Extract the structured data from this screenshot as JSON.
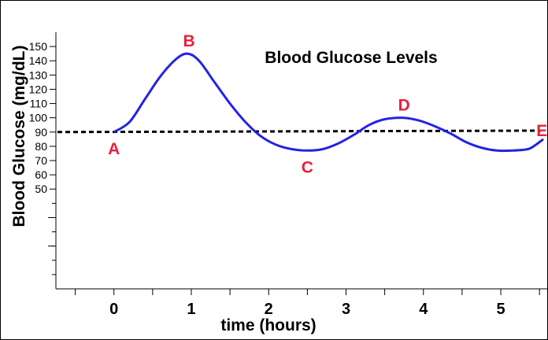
{
  "chart_data": {
    "type": "line",
    "title": "Blood Glucose Levels",
    "xlabel": "time (hours)",
    "ylabel": "Blood Glucose (mg/dL)",
    "x_ticks": [
      "0",
      "1",
      "2",
      "3",
      "4",
      "5"
    ],
    "y_ticks": [
      "50",
      "60",
      "70",
      "80",
      "90",
      "100",
      "110",
      "120",
      "130",
      "140",
      "150"
    ],
    "xlim": [
      -0.75,
      5.6
    ],
    "ylim": [
      -20,
      160
    ],
    "grid": false,
    "series": [
      {
        "color": "#2323e6",
        "x": [
          0.0,
          0.2,
          0.4,
          0.6,
          0.8,
          0.95,
          1.1,
          1.3,
          1.5,
          1.7,
          1.9,
          2.1,
          2.3,
          2.5,
          2.7,
          2.9,
          3.1,
          3.3,
          3.5,
          3.75,
          3.95,
          4.15,
          4.35,
          4.55,
          4.75,
          4.95,
          5.15,
          5.35,
          5.45,
          5.55
        ],
        "y": [
          90,
          97,
          113,
          129,
          141,
          145,
          140,
          125,
          110,
          97,
          87,
          81,
          78,
          77,
          78,
          82,
          88,
          95,
          99,
          100,
          98,
          94,
          89,
          83,
          79,
          77,
          77,
          78,
          81,
          85
        ]
      }
    ],
    "reference_line": {
      "y": 90,
      "y_end": 91,
      "style": "dashed",
      "color": "#000000"
    },
    "annotations": [
      {
        "text": "A",
        "x": 0.0,
        "y": 90,
        "color": "#e8213b"
      },
      {
        "text": "B",
        "x": 0.95,
        "y": 145,
        "color": "#e8213b"
      },
      {
        "text": "C",
        "x": 2.5,
        "y": 77,
        "color": "#e8213b"
      },
      {
        "text": "D",
        "x": 3.75,
        "y": 100,
        "color": "#e8213b"
      },
      {
        "text": "E",
        "x": 5.45,
        "y": 91,
        "color": "#e8213b"
      }
    ]
  }
}
